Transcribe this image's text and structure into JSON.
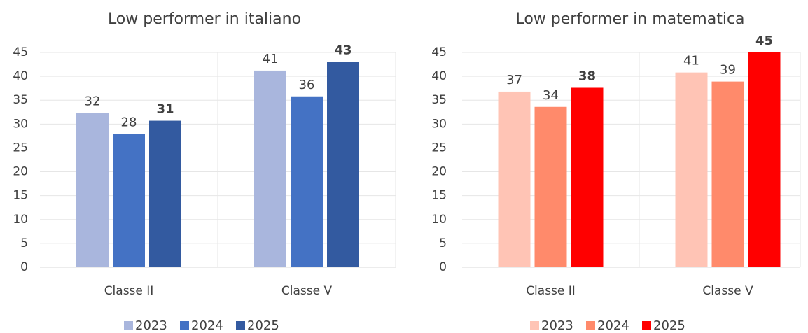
{
  "chart_data": [
    {
      "type": "bar",
      "title": "Low performer in italiano",
      "categories": [
        "Classe II",
        "Classe V"
      ],
      "series": [
        {
          "name": "2023",
          "color": "#a9b6dd",
          "values": [
            32.3,
            41.2
          ],
          "value_labels": [
            "32",
            "41"
          ],
          "bold": false
        },
        {
          "name": "2024",
          "color": "#4472c4",
          "values": [
            27.9,
            35.8
          ],
          "value_labels": [
            "28",
            "36"
          ],
          "bold": false
        },
        {
          "name": "2025",
          "color": "#335aa0",
          "values": [
            30.7,
            43.0
          ],
          "value_labels": [
            "31",
            "43"
          ],
          "bold": true
        }
      ],
      "ylim": [
        0,
        45
      ],
      "yticks": [
        0,
        5,
        10,
        15,
        20,
        25,
        30,
        35,
        40,
        45
      ],
      "grid": true,
      "legend": "bottom"
    },
    {
      "type": "bar",
      "title": "Low performer in matematica",
      "categories": [
        "Classe II",
        "Classe V"
      ],
      "series": [
        {
          "name": "2023",
          "color": "#ffc4b5",
          "values": [
            36.8,
            40.8
          ],
          "value_labels": [
            "37",
            "41"
          ],
          "bold": false
        },
        {
          "name": "2024",
          "color": "#ff8a6b",
          "values": [
            33.6,
            38.9
          ],
          "value_labels": [
            "34",
            "39"
          ],
          "bold": false
        },
        {
          "name": "2025",
          "color": "#ff0000",
          "values": [
            37.6,
            45.0
          ],
          "value_labels": [
            "38",
            "45"
          ],
          "bold": true
        }
      ],
      "ylim": [
        0,
        45
      ],
      "yticks": [
        0,
        5,
        10,
        15,
        20,
        25,
        30,
        35,
        40,
        45
      ],
      "grid": true,
      "legend": "bottom"
    }
  ]
}
